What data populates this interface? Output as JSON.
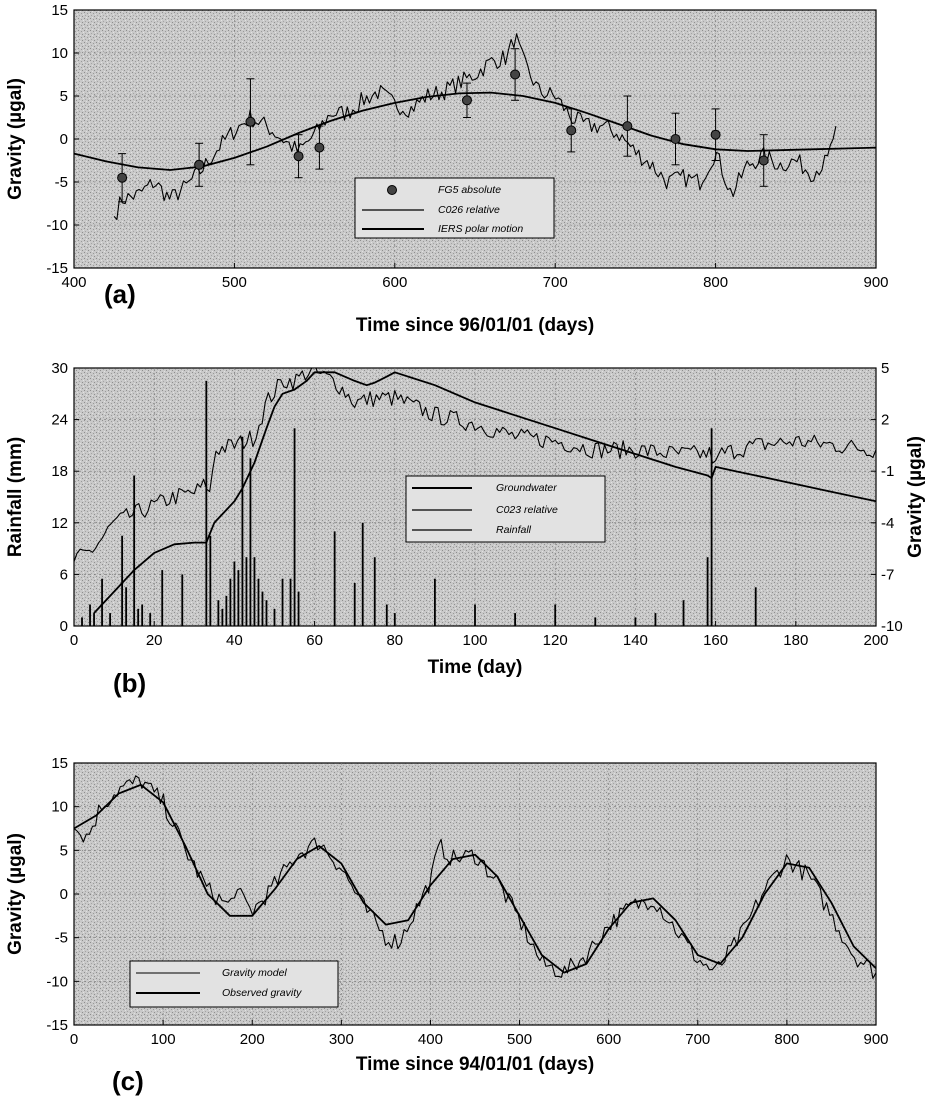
{
  "chart_data": [
    {
      "panel": "(a)",
      "type": "line",
      "xlabel": "Time since 96/01/01 (days)",
      "ylabel": "Gravity (µgal)",
      "xlim": [
        400,
        900
      ],
      "ylim": [
        -15,
        15
      ],
      "xticks": [
        400,
        500,
        600,
        700,
        800,
        900
      ],
      "yticks": [
        15,
        10,
        5,
        0,
        -5,
        -10,
        -15
      ],
      "grid": true,
      "legend_position": "bottom-center",
      "legend": [
        "FG5 absolute",
        "C026 relative",
        "IERS polar motion"
      ],
      "series": [
        {
          "name": "IERS polar motion",
          "kind": "smooth",
          "x": [
            400,
            420,
            440,
            460,
            480,
            500,
            520,
            540,
            560,
            580,
            600,
            620,
            640,
            660,
            680,
            700,
            720,
            740,
            760,
            780,
            800,
            820,
            840,
            860,
            880,
            900
          ],
          "y": [
            -1.7,
            -2.6,
            -3.3,
            -3.6,
            -3.2,
            -2.2,
            -0.9,
            0.7,
            2.1,
            3.3,
            4.2,
            4.9,
            5.3,
            5.4,
            5.0,
            4.2,
            3.0,
            1.7,
            0.4,
            -0.6,
            -1.2,
            -1.4,
            -1.3,
            -1.2,
            -1.1,
            -1.0
          ]
        },
        {
          "name": "C026 relative",
          "kind": "noisy",
          "x": [
            425,
            430,
            440,
            450,
            460,
            470,
            480,
            490,
            500,
            510,
            520,
            530,
            540,
            550,
            560,
            570,
            580,
            590,
            600,
            610,
            620,
            630,
            640,
            650,
            660,
            670,
            675,
            680,
            690,
            700,
            710,
            720,
            730,
            740,
            750,
            760,
            770,
            780,
            790,
            800,
            810,
            820,
            830,
            840,
            850,
            860,
            870,
            875
          ],
          "y": [
            -9.0,
            -7.0,
            -6.5,
            -5.0,
            -7.0,
            -5.5,
            -3.5,
            -1.0,
            1.0,
            2.5,
            1.5,
            0.0,
            -1.5,
            0.5,
            3.0,
            3.0,
            4.5,
            5.5,
            4.0,
            3.5,
            5.0,
            5.5,
            6.5,
            7.5,
            9.0,
            9.5,
            12.0,
            9.0,
            5.5,
            5.0,
            2.5,
            1.5,
            1.5,
            0.5,
            -1.5,
            -3.0,
            -5.0,
            -4.5,
            -5.0,
            -1.5,
            -6.5,
            -3.0,
            -2.0,
            -3.0,
            -2.5,
            -4.0,
            -2.5,
            1.5
          ]
        },
        {
          "name": "FG5 absolute",
          "kind": "points",
          "x": [
            430,
            478,
            510,
            540,
            553,
            645,
            675,
            710,
            745,
            775,
            800,
            830
          ],
          "y": [
            -4.5,
            -3.0,
            2.0,
            -2.0,
            -1.0,
            4.5,
            7.5,
            1.0,
            1.5,
            0.0,
            0.5,
            -2.5
          ],
          "err": [
            2.8,
            2.5,
            5.0,
            2.5,
            2.5,
            2.0,
            3.0,
            2.5,
            3.5,
            3.0,
            3.0,
            3.0
          ]
        }
      ]
    },
    {
      "panel": "(b)",
      "type": "line",
      "xlabel": "Time (day)",
      "ylabel": "Rainfall (mm)",
      "ylabel_right": "Gravity (µgal)",
      "xlim": [
        0,
        200
      ],
      "ylim": [
        0,
        30
      ],
      "ylim_right": [
        -10,
        5
      ],
      "xticks": [
        0,
        20,
        40,
        60,
        80,
        100,
        120,
        140,
        160,
        180,
        200
      ],
      "yticks": [
        0,
        6,
        12,
        18,
        24,
        30
      ],
      "yticks_right": [
        5,
        2,
        -1,
        -4,
        -7,
        -10
      ],
      "grid": true,
      "legend_position": "center",
      "legend": [
        "Groundwater",
        "C023 relative",
        "Rainfall"
      ],
      "series": [
        {
          "name": "Groundwater",
          "kind": "smooth",
          "x": [
            5,
            10,
            15,
            20,
            25,
            30,
            33,
            35,
            38,
            40,
            42,
            45,
            48,
            50,
            52,
            55,
            58,
            60,
            65,
            70,
            73,
            75,
            78,
            80,
            90,
            100,
            110,
            120,
            130,
            140,
            150,
            158,
            159,
            160,
            165,
            170,
            180,
            190,
            200
          ],
          "y": [
            1.5,
            4.0,
            6.5,
            8.5,
            9.5,
            9.7,
            9.7,
            12.0,
            13.5,
            14.5,
            16.0,
            19.0,
            23.0,
            25.5,
            27.0,
            27.5,
            28.5,
            29.5,
            29.5,
            28.5,
            28.0,
            28.3,
            29.0,
            29.5,
            28.0,
            26.0,
            24.5,
            23.0,
            21.5,
            20.0,
            18.5,
            17.5,
            17.2,
            18.5,
            18.0,
            17.5,
            16.5,
            15.5,
            14.5
          ]
        },
        {
          "name": "C023 relative",
          "kind": "noisy",
          "x": [
            0,
            5,
            10,
            15,
            20,
            25,
            30,
            33,
            34,
            35,
            40,
            45,
            48,
            52,
            55,
            58,
            60,
            65,
            70,
            75,
            80,
            90,
            100,
            110,
            120,
            130,
            140,
            150,
            159,
            160,
            161,
            170,
            180,
            190,
            200
          ],
          "y": [
            7.5,
            9.0,
            12.0,
            13.0,
            14.0,
            15.0,
            15.5,
            16.5,
            15.0,
            20.5,
            21.0,
            22.0,
            26.0,
            28.5,
            28.5,
            29.5,
            29.5,
            28.5,
            26.0,
            26.5,
            26.5,
            24.5,
            23.5,
            22.0,
            21.5,
            20.5,
            20.5,
            20.0,
            20.0,
            18.5,
            20.0,
            21.0,
            21.5,
            21.0,
            20.5
          ]
        },
        {
          "name": "Rainfall",
          "kind": "bars",
          "x": [
            2,
            4,
            5,
            7,
            9,
            12,
            13,
            15,
            16,
            17,
            19,
            22,
            27,
            33,
            34,
            36,
            37,
            38,
            39,
            40,
            41,
            42,
            43,
            44,
            45,
            46,
            47,
            48,
            50,
            52,
            54,
            55,
            56,
            65,
            70,
            72,
            75,
            78,
            80,
            90,
            100,
            110,
            120,
            130,
            140,
            145,
            152,
            158,
            159,
            170
          ],
          "y": [
            1.0,
            2.5,
            1.5,
            5.5,
            1.5,
            10.5,
            4.5,
            17.5,
            2.0,
            2.5,
            1.5,
            6.5,
            6.0,
            28.5,
            10.5,
            3.0,
            2.0,
            3.5,
            5.5,
            7.5,
            6.5,
            22.0,
            8.0,
            19.5,
            8.0,
            5.5,
            4.0,
            3.0,
            2.0,
            5.5,
            5.5,
            23.0,
            4.0,
            11.0,
            5.0,
            12.0,
            8.0,
            2.5,
            1.5,
            5.5,
            2.5,
            1.5,
            2.5,
            1.0,
            1.0,
            1.5,
            3.0,
            8.0,
            23.0,
            4.5
          ]
        }
      ]
    },
    {
      "panel": "(c)",
      "type": "line",
      "xlabel": "Time since 94/01/01 (days)",
      "ylabel": "Gravity (µgal)",
      "xlim": [
        0,
        900
      ],
      "ylim": [
        -15,
        15
      ],
      "xticks": [
        0,
        100,
        200,
        300,
        400,
        500,
        600,
        700,
        800,
        900
      ],
      "yticks": [
        15,
        10,
        5,
        0,
        -5,
        -10,
        -15
      ],
      "grid": true,
      "legend_position": "bottom-left",
      "legend": [
        "Gravity model",
        "Observed gravity"
      ],
      "series": [
        {
          "name": "Gravity model",
          "kind": "smooth",
          "x": [
            0,
            25,
            50,
            75,
            100,
            125,
            150,
            175,
            200,
            225,
            250,
            275,
            300,
            325,
            350,
            375,
            400,
            425,
            450,
            475,
            500,
            525,
            550,
            575,
            600,
            625,
            650,
            675,
            700,
            725,
            750,
            775,
            800,
            825,
            850,
            875,
            900
          ],
          "y": [
            7.5,
            9.0,
            11.5,
            12.5,
            10.5,
            5.5,
            0.0,
            -2.5,
            -2.5,
            0.5,
            4.0,
            5.5,
            3.5,
            -1.0,
            -3.5,
            -3.0,
            1.0,
            4.0,
            4.5,
            2.0,
            -2.5,
            -7.0,
            -9.0,
            -8.0,
            -4.0,
            -1.0,
            -0.5,
            -3.0,
            -7.0,
            -8.0,
            -5.0,
            0.0,
            3.5,
            3.0,
            -1.0,
            -6.0,
            -8.5
          ]
        },
        {
          "name": "Observed gravity",
          "kind": "noisy",
          "x": [
            0,
            15,
            30,
            50,
            75,
            100,
            125,
            150,
            175,
            180,
            200,
            225,
            250,
            275,
            300,
            325,
            350,
            365,
            375,
            400,
            410,
            425,
            450,
            475,
            500,
            525,
            550,
            575,
            600,
            625,
            650,
            675,
            700,
            720,
            750,
            775,
            800,
            825,
            850,
            875,
            900
          ],
          "y": [
            7.5,
            6.5,
            10.0,
            12.0,
            13.0,
            10.5,
            5.0,
            0.5,
            -1.5,
            0.5,
            -2.0,
            1.0,
            4.5,
            6.0,
            3.0,
            -1.5,
            -5.0,
            -5.5,
            -3.5,
            1.5,
            5.5,
            4.0,
            4.5,
            1.5,
            -3.0,
            -8.0,
            -9.0,
            -7.0,
            -3.5,
            -1.5,
            -0.5,
            -4.0,
            -7.5,
            -9.0,
            -4.5,
            0.5,
            4.0,
            2.0,
            -2.5,
            -7.0,
            -9.0
          ]
        }
      ]
    }
  ]
}
